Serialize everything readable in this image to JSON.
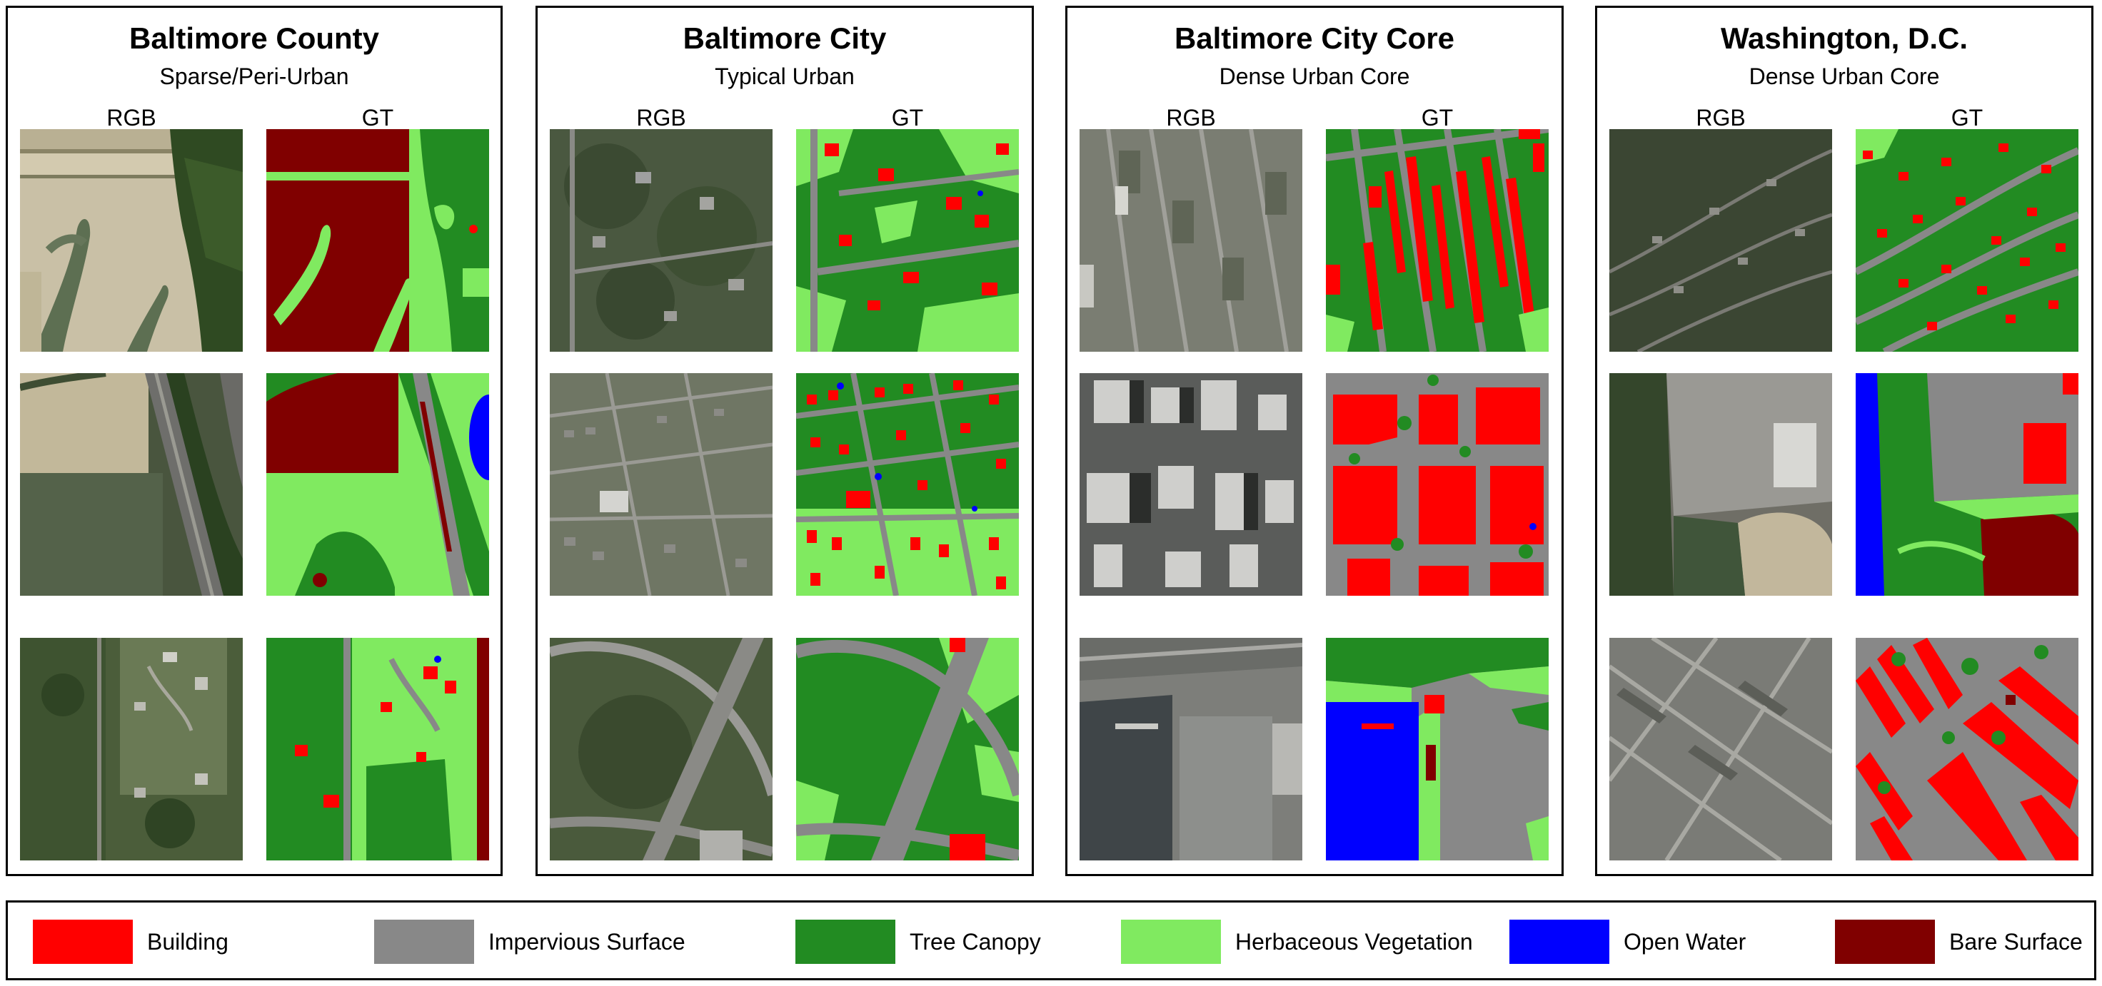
{
  "colors": {
    "building": "#ff0000",
    "impervious": "#888888",
    "tree": "#228b22",
    "herbaceous": "#80ea60",
    "water": "#0000ff",
    "bare": "#800000"
  },
  "panels": [
    {
      "title": "Baltimore County",
      "subtitle": "Sparse/Peri-Urban",
      "rgb_label": "RGB",
      "gt_label": "GT"
    },
    {
      "title": "Baltimore City",
      "subtitle": "Typical Urban",
      "rgb_label": "RGB",
      "gt_label": "GT"
    },
    {
      "title": "Baltimore City Core",
      "subtitle": "Dense Urban Core",
      "rgb_label": "RGB",
      "gt_label": "GT"
    },
    {
      "title": "Washington, D.C.",
      "subtitle": "Dense Urban Core",
      "rgb_label": "RGB",
      "gt_label": "GT"
    }
  ],
  "legend": [
    {
      "label": "Building",
      "color": "#ff0000"
    },
    {
      "label": "Impervious Surface",
      "color": "#888888"
    },
    {
      "label": "Tree Canopy",
      "color": "#228b22"
    },
    {
      "label": "Herbaceous Vegetation",
      "color": "#80ea60"
    },
    {
      "label": "Open Water",
      "color": "#0000ff"
    },
    {
      "label": "Bare Surface",
      "color": "#800000"
    }
  ]
}
